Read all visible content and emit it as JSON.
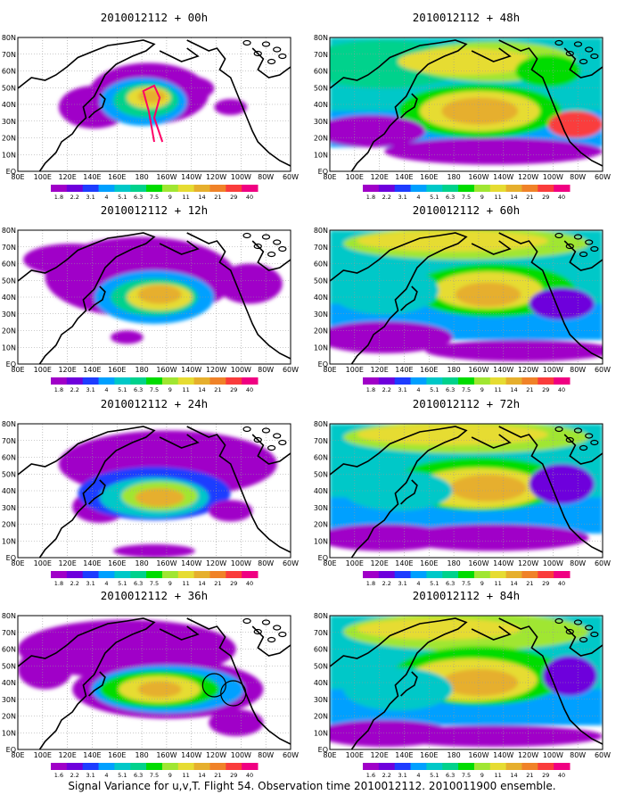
{
  "caption": "Signal Variance for u,v,T. Flight 54. Observation time 2010012112. 2010011900 ensemble.",
  "lat_labels": [
    "80N",
    "70N",
    "60N",
    "50N",
    "40N",
    "30N",
    "20N",
    "10N",
    "EQ"
  ],
  "lon_labels": [
    "80E",
    "100E",
    "120E",
    "140E",
    "160E",
    "180",
    "160W",
    "140W",
    "120W",
    "100W",
    "80W",
    "60W"
  ],
  "colorbar": {
    "levels": [
      "1.8",
      "2.2",
      "3.1",
      "4",
      "5.1",
      "6.3",
      "7.5",
      "9",
      "11",
      "14",
      "21",
      "29",
      "40"
    ],
    "levels_alt": [
      "1.6",
      "2.2",
      "3.1",
      "4",
      "5.1",
      "6.3",
      "7.5",
      "9",
      "11",
      "14",
      "21",
      "29",
      "40"
    ],
    "colors": [
      "#a000c8",
      "#6e00dc",
      "#1e3cff",
      "#00a0ff",
      "#00c8c8",
      "#00d28c",
      "#00dc00",
      "#a0e632",
      "#e6dc32",
      "#e6af2d",
      "#f08228",
      "#fa3c3c",
      "#f00082"
    ]
  },
  "land_color": "#ffffff",
  "panels": [
    {
      "id": "p00",
      "title": "2010012112 + 00h",
      "alt_cbar": false
    },
    {
      "id": "p48",
      "title": "2010012112 + 48h",
      "alt_cbar": false
    },
    {
      "id": "p12",
      "title": "2010012112 + 12h",
      "alt_cbar": false
    },
    {
      "id": "p60",
      "title": "2010012112 + 60h",
      "alt_cbar": false
    },
    {
      "id": "p24",
      "title": "2010012112 + 24h",
      "alt_cbar": false
    },
    {
      "id": "p72",
      "title": "2010012112 + 72h",
      "alt_cbar": false
    },
    {
      "id": "p36",
      "title": "2010012112 + 36h",
      "alt_cbar": true
    },
    {
      "id": "p84",
      "title": "2010012112 + 84h",
      "alt_cbar": true
    }
  ]
}
